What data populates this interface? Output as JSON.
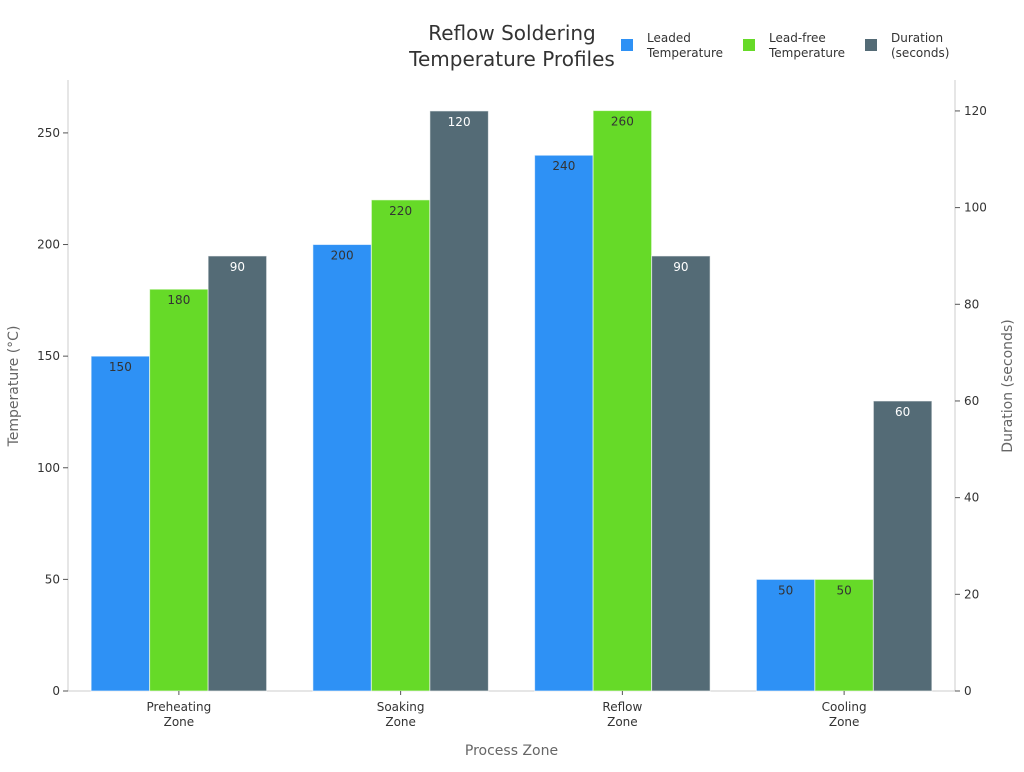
{
  "chart_data": {
    "type": "bar",
    "title": "Reflow Soldering\nTemperature Profiles",
    "xlabel": "Process Zone",
    "ylabel": "Temperature (°C)",
    "y2label": "Duration (seconds)",
    "categories": [
      "Preheating\nZone",
      "Soaking\nZone",
      "Reflow\nZone",
      "Cooling\nZone"
    ],
    "series": [
      {
        "name": "Leaded\nTemperature",
        "axis": "left",
        "color": "#2e91f5",
        "values": [
          150,
          200,
          240,
          50
        ]
      },
      {
        "name": "Lead-free\nTemperature",
        "axis": "left",
        "color": "#66da28",
        "values": [
          180,
          220,
          260,
          50
        ]
      },
      {
        "name": "Duration\n(seconds)",
        "axis": "right",
        "color": "#546b76",
        "values": [
          90,
          120,
          90,
          60
        ]
      }
    ],
    "ylim": [
      0,
      273.7
    ],
    "y2lim": [
      0,
      126.4
    ],
    "yticks": [
      0,
      50,
      100,
      150,
      200,
      250
    ],
    "y2ticks": [
      0,
      20,
      40,
      60,
      80,
      100,
      120
    ],
    "grid": false,
    "legend_position": "top-right",
    "data_labels": true
  }
}
